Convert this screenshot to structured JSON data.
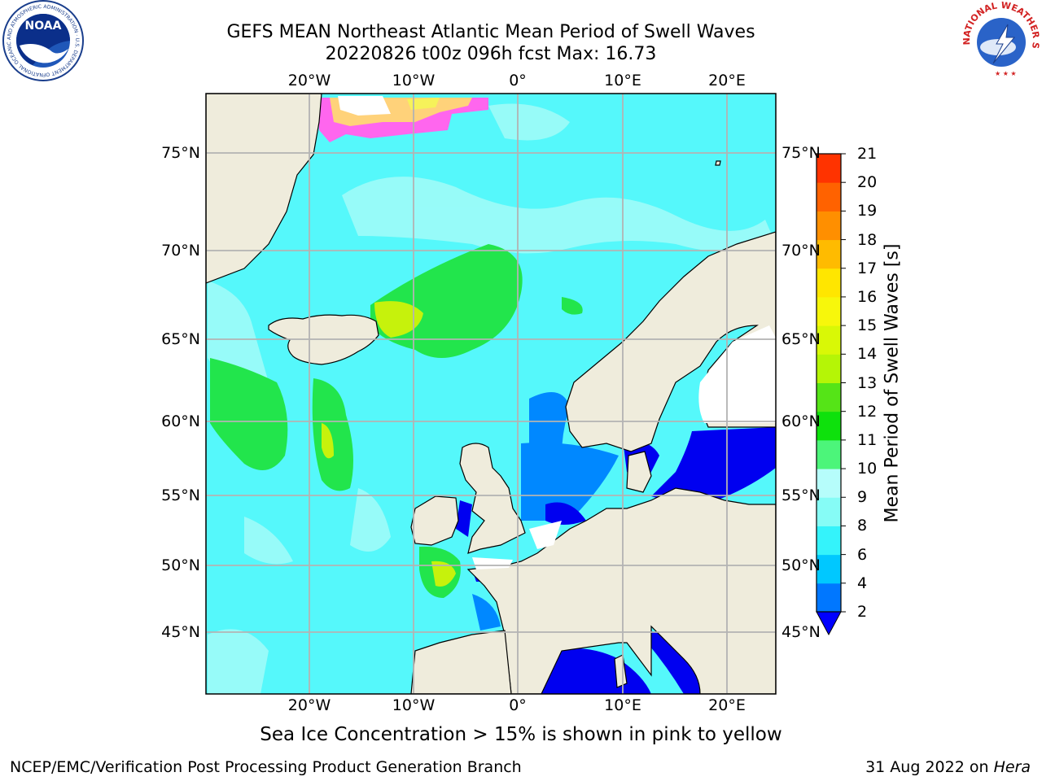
{
  "title": {
    "line1": "GEFS MEAN Northeast Atlantic Mean Period of Swell Waves",
    "line2": "20220826 t00z 096h fcst   Max: 16.73"
  },
  "map": {
    "lon_labels_top": [
      "20°W",
      "10°W",
      "0°",
      "10°E",
      "20°E"
    ],
    "lon_labels_bottom": [
      "20°W",
      "10°W",
      "0°",
      "10°E",
      "20°E"
    ],
    "lat_labels_left": [
      "75°N",
      "70°N",
      "65°N",
      "60°N",
      "55°N",
      "50°N",
      "45°N"
    ],
    "lat_labels_right": [
      "75°N",
      "70°N",
      "65°N",
      "60°N",
      "55°N",
      "50°N",
      "45°N"
    ],
    "gridlines": "on",
    "land_color": "#efecdc",
    "ocean_base_color": "#55f8fb"
  },
  "colorbar": {
    "label": "Mean Period of Swell Waves [s]",
    "ticks": [
      "2",
      "4",
      "6",
      "8",
      "9",
      "10",
      "11",
      "12",
      "13",
      "14",
      "15",
      "16",
      "17",
      "18",
      "19",
      "20",
      "21"
    ],
    "colors": [
      "#0077ff",
      "#00c8ff",
      "#34f3fb",
      "#86fcf6",
      "#b6fdfb",
      "#4cf57a",
      "#0ee10c",
      "#55e417",
      "#b5f506",
      "#d9f806",
      "#f7f70b",
      "#ffe600",
      "#ffbb00",
      "#ff8f00",
      "#ff6200",
      "#ff3300",
      "#ff0000"
    ],
    "extend_color": "#0000ff"
  },
  "note": "Sea Ice Concentration > 15% is shown in pink to yellow",
  "footer": {
    "left": "NCEP/EMC/Verification Post Processing Product Generation Branch",
    "right_date": "31 Aug 2022 on ",
    "right_host": "Hera"
  },
  "logos": {
    "noaa_text": "NOAA",
    "noaa_ring_text": "NATIONAL OCEANIC AND ATMOSPHERIC ADMINISTRATION · U.S. DEPARTMENT OF COMMERCE",
    "nws_ring_text": "NATIONAL WEATHER SERVICE"
  },
  "icons": [
    "noaa-logo",
    "nws-logo"
  ]
}
